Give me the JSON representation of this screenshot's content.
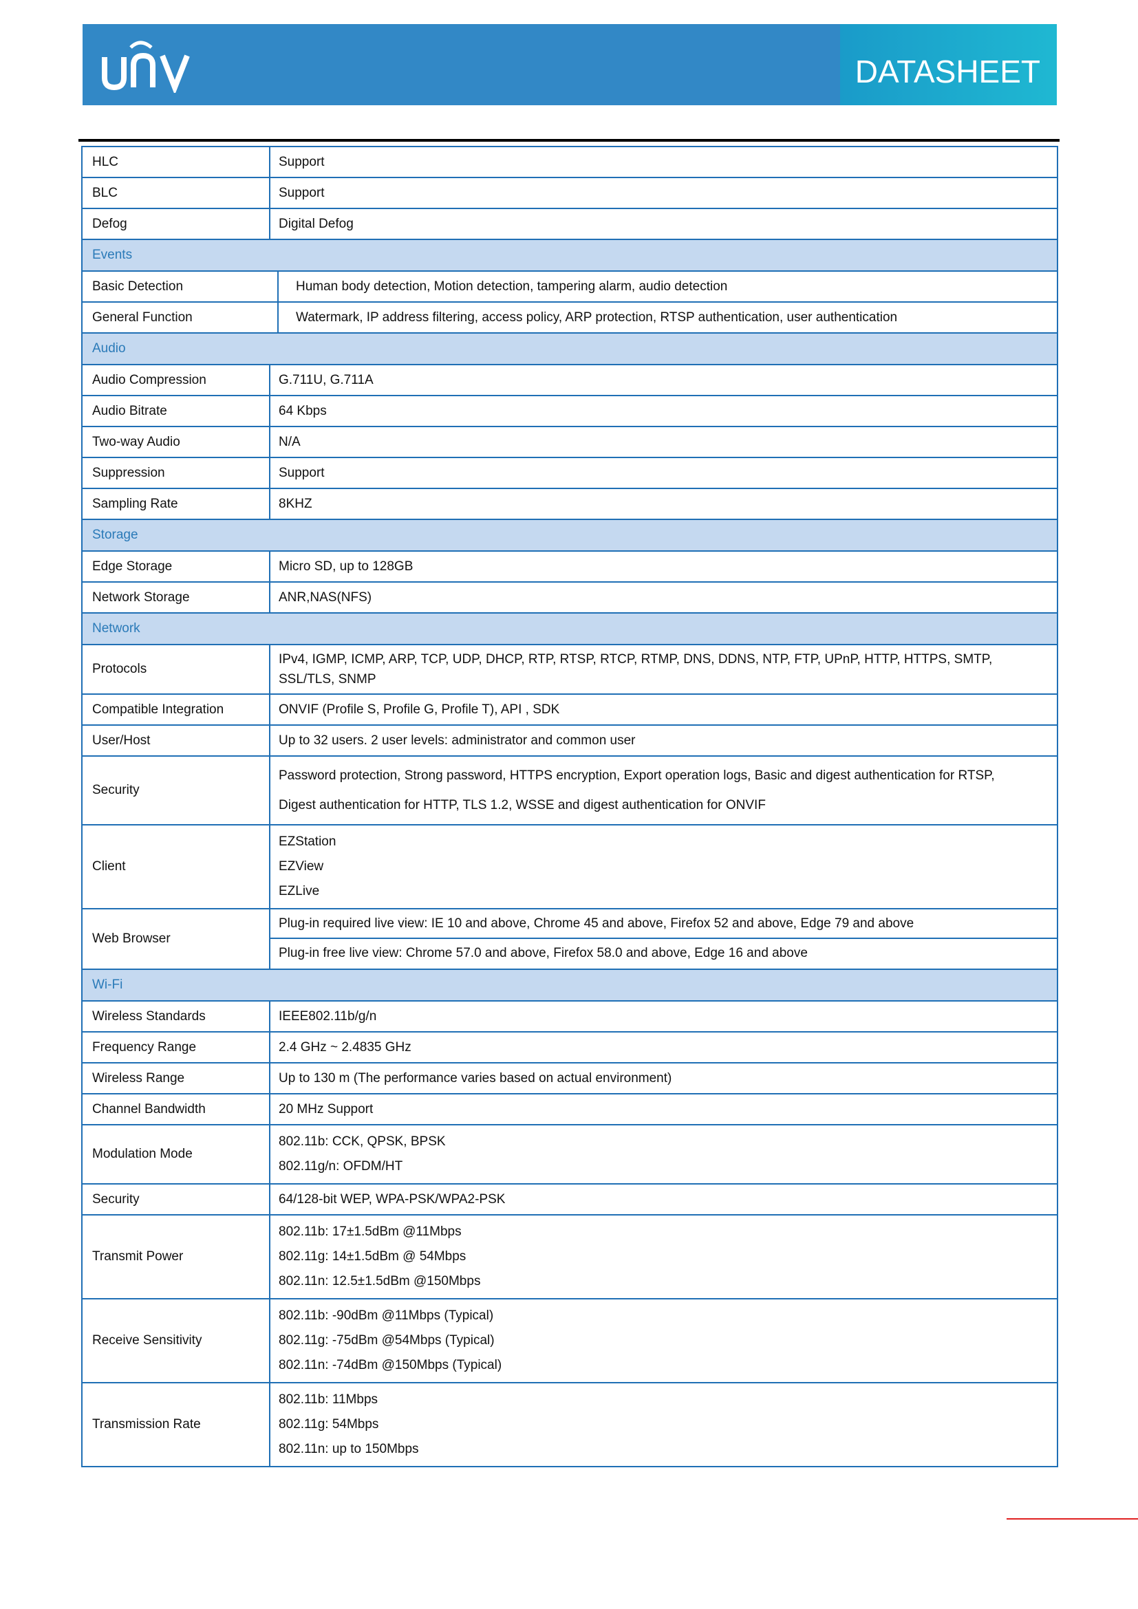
{
  "header": {
    "logo_text": "UNV",
    "title": "DATASHEET",
    "brand_color": "#3288c6",
    "accent_color": "#1fb8d2"
  },
  "table": [
    {
      "type": "row",
      "label": "HLC",
      "values": [
        "Support"
      ]
    },
    {
      "type": "row",
      "label": "BLC",
      "values": [
        "Support"
      ]
    },
    {
      "type": "row",
      "label": "Defog",
      "values": [
        "Digital Defog"
      ]
    },
    {
      "type": "section",
      "label": "Events"
    },
    {
      "type": "row",
      "style": "wide",
      "label": "Basic Detection",
      "values": [
        "Human body detection, Motion detection, tampering alarm, audio detection"
      ]
    },
    {
      "type": "row",
      "style": "wide",
      "label": "General Function",
      "values": [
        "Watermark, IP address filtering, access policy, ARP protection, RTSP authentication, user authentication"
      ]
    },
    {
      "type": "section",
      "label": "Audio"
    },
    {
      "type": "row",
      "label": "Audio Compression",
      "values": [
        "G.711U, G.711A"
      ]
    },
    {
      "type": "row",
      "label": "Audio Bitrate",
      "values": [
        "64 Kbps"
      ]
    },
    {
      "type": "row",
      "label": "Two-way Audio",
      "values": [
        "N/A"
      ]
    },
    {
      "type": "row",
      "label": "Suppression",
      "values": [
        "Support"
      ]
    },
    {
      "type": "row",
      "label": "Sampling Rate",
      "values": [
        "8KHZ"
      ]
    },
    {
      "type": "section",
      "label": "Storage"
    },
    {
      "type": "row",
      "label": "Edge Storage",
      "values": [
        "Micro SD, up to 128GB"
      ]
    },
    {
      "type": "row",
      "label": "Network Storage",
      "values": [
        "ANR,NAS(NFS)"
      ]
    },
    {
      "type": "section",
      "label": "Network"
    },
    {
      "type": "row",
      "style": "tight",
      "label": "Protocols",
      "values": [
        "IPv4, IGMP, ICMP, ARP, TCP, UDP, DHCP, RTP, RTSP, RTCP, RTMP, DNS, DDNS, NTP, FTP, UPnP, HTTP, HTTPS, SMTP,",
        "SSL/TLS, SNMP"
      ]
    },
    {
      "type": "row",
      "label": "Compatible Integration",
      "values": [
        "ONVIF (Profile S, Profile G, Profile T), API , SDK"
      ]
    },
    {
      "type": "row",
      "label": "User/Host",
      "values": [
        "Up to 32 users. 2 user levels: administrator and common user"
      ]
    },
    {
      "type": "row",
      "style": "loose",
      "label": "Security",
      "values": [
        "Password protection, Strong password, HTTPS encryption, Export operation logs, Basic and digest authentication for RTSP,",
        "Digest authentication for HTTP, TLS 1.2, WSSE and digest authentication for ONVIF"
      ]
    },
    {
      "type": "row",
      "label": "Client",
      "values": [
        "EZStation",
        "EZView",
        "EZLive"
      ]
    },
    {
      "type": "row",
      "style": "split",
      "label": "Web Browser",
      "values": [
        "Plug-in required live view: IE 10 and above, Chrome 45 and above, Firefox 52 and above, Edge 79 and above",
        "Plug-in free live view: Chrome 57.0 and above, Firefox 58.0 and above, Edge 16 and above"
      ]
    },
    {
      "type": "section",
      "label": "Wi-Fi"
    },
    {
      "type": "row",
      "label": "Wireless Standards",
      "values": [
        "IEEE802.11b/g/n"
      ]
    },
    {
      "type": "row",
      "label": "Frequency Range",
      "values": [
        "2.4 GHz ~ 2.4835 GHz"
      ]
    },
    {
      "type": "row",
      "label": "Wireless Range",
      "values": [
        "Up to 130 m (The performance varies based on actual environment)"
      ]
    },
    {
      "type": "row",
      "label": "Channel Bandwidth",
      "values": [
        "20 MHz Support"
      ]
    },
    {
      "type": "row",
      "label": "Modulation Mode",
      "values": [
        "802.11b: CCK, QPSK, BPSK",
        "802.11g/n: OFDM/HT"
      ]
    },
    {
      "type": "row",
      "label": "Security",
      "values": [
        "64/128-bit WEP,  WPA-PSK/WPA2-PSK"
      ]
    },
    {
      "type": "row",
      "label": "Transmit Power",
      "values": [
        "802.11b: 17±1.5dBm @11Mbps",
        "802.11g: 14±1.5dBm @ 54Mbps",
        "802.11n: 12.5±1.5dBm @150Mbps"
      ]
    },
    {
      "type": "row",
      "label": "Receive Sensitivity",
      "values": [
        "802.11b: -90dBm @11Mbps (Typical)",
        "802.11g: -75dBm @54Mbps (Typical)",
        "802.11n: -74dBm @150Mbps (Typical)"
      ]
    },
    {
      "type": "row",
      "label": "Transmission Rate",
      "values": [
        "802.11b: 11Mbps",
        "802.11g: 54Mbps",
        "802.11n: up to 150Mbps"
      ]
    }
  ]
}
